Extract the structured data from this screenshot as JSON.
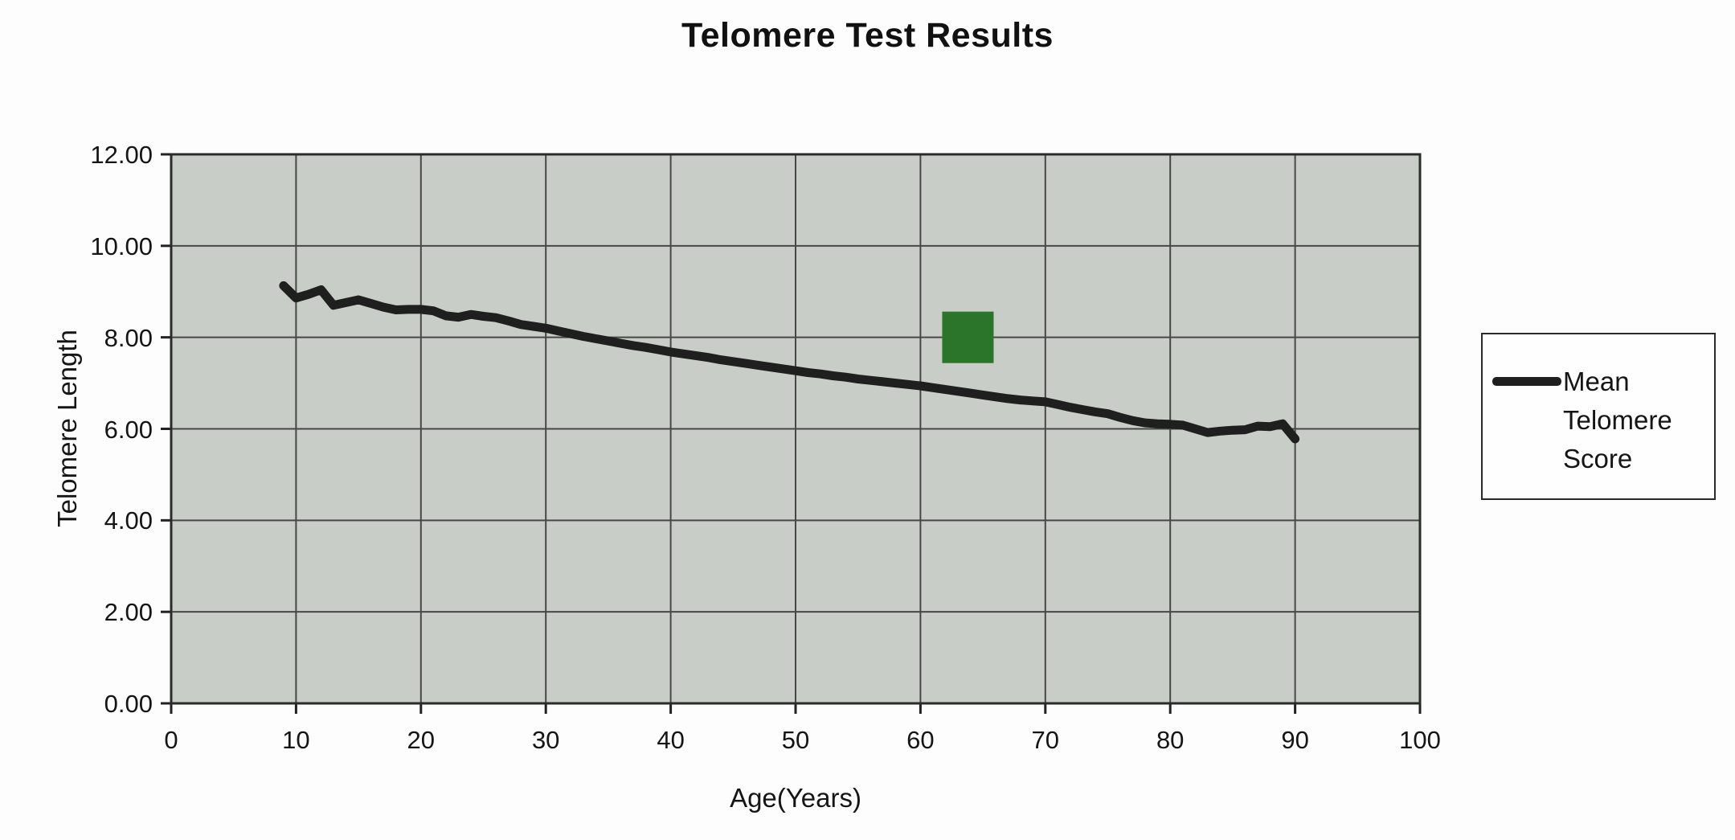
{
  "title": "Telomere Test Results",
  "axes": {
    "x_label": "Age(Years)",
    "y_label": "Telomere Length"
  },
  "legend": {
    "position": "right",
    "entries": [
      {
        "label": "Mean Telomere Score",
        "swatch": "thick-dark-line"
      }
    ]
  },
  "colors": {
    "line": "#1f1f1f",
    "marker_green": "#2b752b",
    "plot_background": "#c9cdc7",
    "gridline": "#474747",
    "plot_border": "#2b2b2b"
  },
  "chart_data": {
    "type": "line",
    "title": "Telomere Test Results",
    "xlabel": "Age(Years)",
    "ylabel": "Telomere Length",
    "xlim": [
      0,
      100
    ],
    "ylim": [
      0,
      12
    ],
    "grid": true,
    "legend_position": "right",
    "xticks": [
      0,
      10,
      20,
      30,
      40,
      50,
      60,
      70,
      80,
      90,
      100
    ],
    "yticks": [
      0,
      2,
      4,
      6,
      8,
      10,
      12
    ],
    "ytick_labels": [
      "0.00",
      "2.00",
      "4.00",
      "6.00",
      "8.00",
      "10.00",
      "12.00"
    ],
    "series": [
      {
        "name": "Mean Telomere Score",
        "color": "#1f1f1f",
        "stroke_width": 11,
        "points": [
          [
            9,
            9.13
          ],
          [
            10,
            8.86
          ],
          [
            11,
            8.94
          ],
          [
            12,
            9.04
          ],
          [
            13,
            8.7
          ],
          [
            14,
            8.76
          ],
          [
            15,
            8.82
          ],
          [
            16,
            8.74
          ],
          [
            17,
            8.66
          ],
          [
            18,
            8.6
          ],
          [
            19,
            8.61
          ],
          [
            20,
            8.61
          ],
          [
            21,
            8.58
          ],
          [
            22,
            8.47
          ],
          [
            23,
            8.44
          ],
          [
            24,
            8.5
          ],
          [
            25,
            8.46
          ],
          [
            26,
            8.43
          ],
          [
            27,
            8.36
          ],
          [
            28,
            8.28
          ],
          [
            29,
            8.24
          ],
          [
            30,
            8.2
          ],
          [
            31,
            8.14
          ],
          [
            32,
            8.08
          ],
          [
            33,
            8.02
          ],
          [
            34,
            7.97
          ],
          [
            35,
            7.92
          ],
          [
            36,
            7.87
          ],
          [
            37,
            7.82
          ],
          [
            38,
            7.78
          ],
          [
            39,
            7.73
          ],
          [
            40,
            7.68
          ],
          [
            41,
            7.64
          ],
          [
            42,
            7.6
          ],
          [
            43,
            7.56
          ],
          [
            44,
            7.51
          ],
          [
            45,
            7.47
          ],
          [
            46,
            7.43
          ],
          [
            47,
            7.39
          ],
          [
            48,
            7.35
          ],
          [
            49,
            7.31
          ],
          [
            50,
            7.27
          ],
          [
            51,
            7.23
          ],
          [
            52,
            7.2
          ],
          [
            53,
            7.16
          ],
          [
            54,
            7.13
          ],
          [
            55,
            7.09
          ],
          [
            56,
            7.06
          ],
          [
            57,
            7.03
          ],
          [
            58,
            7.0
          ],
          [
            59,
            6.97
          ],
          [
            60,
            6.94
          ],
          [
            61,
            6.9
          ],
          [
            62,
            6.86
          ],
          [
            63,
            6.82
          ],
          [
            64,
            6.78
          ],
          [
            65,
            6.74
          ],
          [
            66,
            6.7
          ],
          [
            67,
            6.66
          ],
          [
            68,
            6.63
          ],
          [
            69,
            6.61
          ],
          [
            70,
            6.59
          ],
          [
            71,
            6.53
          ],
          [
            72,
            6.47
          ],
          [
            73,
            6.42
          ],
          [
            74,
            6.37
          ],
          [
            75,
            6.33
          ],
          [
            76,
            6.25
          ],
          [
            77,
            6.18
          ],
          [
            78,
            6.13
          ],
          [
            79,
            6.11
          ],
          [
            80,
            6.1
          ],
          [
            81,
            6.08
          ],
          [
            82,
            6.0
          ],
          [
            83,
            5.92
          ],
          [
            84,
            5.95
          ],
          [
            85,
            5.97
          ],
          [
            86,
            5.98
          ],
          [
            87,
            6.06
          ],
          [
            88,
            6.05
          ],
          [
            89,
            6.11
          ],
          [
            90,
            5.78
          ]
        ]
      }
    ],
    "annotations": [
      {
        "type": "square_marker",
        "name": "green-square-marker",
        "x": 63.8,
        "y": 8.0,
        "color": "#2b752b",
        "pixel_size": 64
      }
    ]
  }
}
